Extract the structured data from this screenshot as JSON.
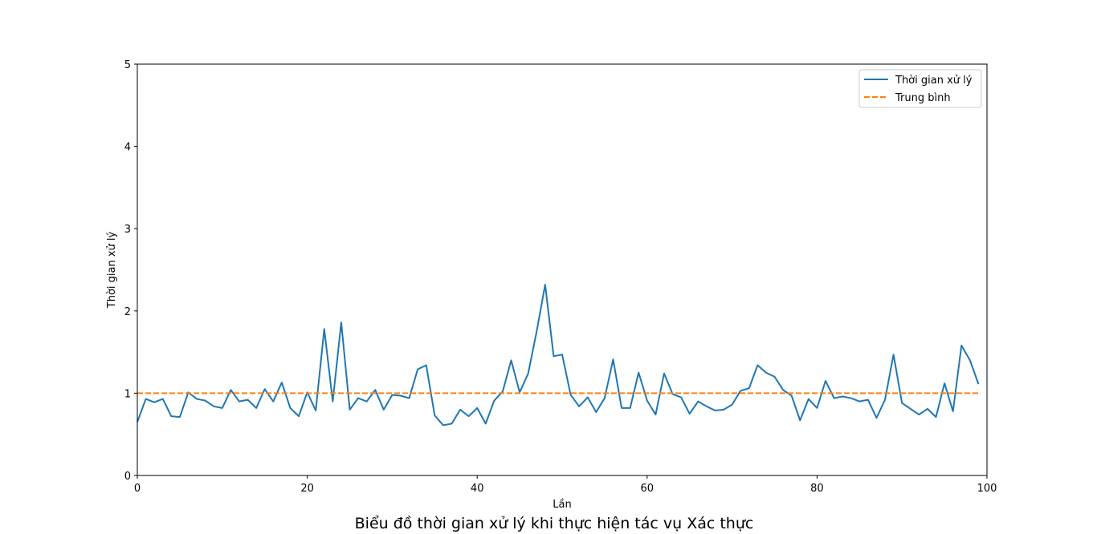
{
  "chart_data": {
    "type": "line",
    "title": "Biểu đồ thời gian xử lý khi thực hiện tác vụ Xác thực",
    "xlabel": "Lần",
    "ylabel": "Thời gian xử lý",
    "xlim": [
      0,
      100
    ],
    "ylim": [
      0,
      5
    ],
    "xticks": [
      "0",
      "20",
      "40",
      "60",
      "80",
      "100"
    ],
    "yticks": [
      "0",
      "1",
      "2",
      "3",
      "4",
      "5"
    ],
    "grid": false,
    "legend_position": "top-right",
    "series": [
      {
        "name": "Thời gian xử lý",
        "color": "#1f77b4",
        "style": "solid",
        "x": [
          0,
          1,
          2,
          3,
          4,
          5,
          6,
          7,
          8,
          9,
          10,
          11,
          12,
          13,
          14,
          15,
          16,
          17,
          18,
          19,
          20,
          21,
          22,
          23,
          24,
          25,
          26,
          27,
          28,
          29,
          30,
          31,
          32,
          33,
          34,
          35,
          36,
          37,
          38,
          39,
          40,
          41,
          42,
          43,
          44,
          45,
          46,
          47,
          48,
          49,
          50,
          51,
          52,
          53,
          54,
          55,
          56,
          57,
          58,
          59,
          60,
          61,
          62,
          63,
          64,
          65,
          66,
          67,
          68,
          69,
          70,
          71,
          72,
          73,
          74,
          75,
          76,
          77,
          78,
          79,
          80,
          81,
          82,
          83,
          84,
          85,
          86,
          87,
          88,
          89,
          90,
          91,
          92,
          93,
          94,
          95,
          96,
          97,
          98,
          99
        ],
        "values": [
          0.65,
          0.93,
          0.89,
          0.93,
          0.72,
          0.71,
          1.01,
          0.93,
          0.91,
          0.84,
          0.82,
          1.04,
          0.9,
          0.92,
          0.82,
          1.05,
          0.9,
          1.13,
          0.82,
          0.72,
          1.01,
          0.79,
          1.78,
          0.9,
          1.86,
          0.8,
          0.94,
          0.9,
          1.04,
          0.8,
          0.98,
          0.97,
          0.94,
          1.29,
          1.34,
          0.73,
          0.61,
          0.63,
          0.8,
          0.72,
          0.82,
          0.63,
          0.91,
          1.02,
          1.4,
          1.01,
          1.24,
          1.75,
          2.32,
          1.45,
          1.47,
          0.98,
          0.84,
          0.95,
          0.77,
          0.94,
          1.41,
          0.82,
          0.82,
          1.25,
          0.91,
          0.74,
          1.24,
          0.99,
          0.95,
          0.75,
          0.9,
          0.84,
          0.79,
          0.8,
          0.86,
          1.03,
          1.06,
          1.34,
          1.25,
          1.2,
          1.04,
          0.97,
          0.67,
          0.93,
          0.82,
          1.15,
          0.94,
          0.96,
          0.94,
          0.9,
          0.92,
          0.7,
          0.92,
          1.47,
          0.88,
          0.81,
          0.74,
          0.81,
          0.71,
          1.12,
          0.78,
          1.58,
          1.4,
          1.11
        ]
      },
      {
        "name": "Trung bình",
        "color": "#ff7f0e",
        "style": "dashed",
        "x": [
          0,
          99
        ],
        "values": [
          1.0,
          1.0
        ]
      }
    ]
  }
}
